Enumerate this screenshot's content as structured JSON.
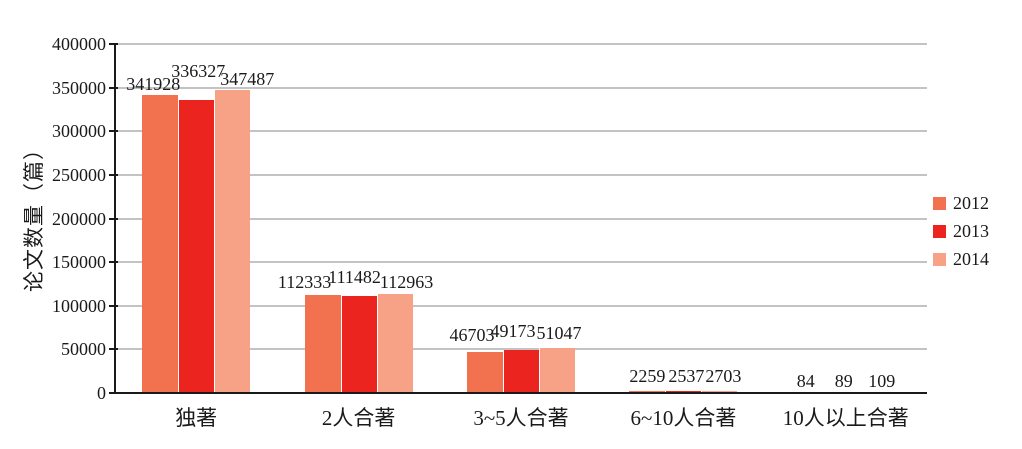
{
  "chart_data": {
    "type": "bar",
    "title": "",
    "xlabel": "",
    "ylabel": "论文数量（篇）",
    "categories": [
      "独著",
      "2人合著",
      "3~5人合著",
      "6~10人合著",
      "10人以上合著"
    ],
    "series": [
      {
        "name": "2012",
        "color": "#F2714E",
        "values": [
          341928,
          112333,
          46703,
          2259,
          84
        ]
      },
      {
        "name": "2013",
        "color": "#EB2420",
        "values": [
          336327,
          111482,
          49173,
          2537,
          89
        ]
      },
      {
        "name": "2014",
        "color": "#F7A287",
        "values": [
          347487,
          112963,
          51047,
          2703,
          109
        ]
      }
    ],
    "ylim": [
      0,
      400000
    ],
    "y_ticks": [
      0,
      50000,
      100000,
      150000,
      200000,
      250000,
      300000,
      350000,
      400000
    ],
    "grid": true,
    "legend_position": "right",
    "value_labels_shown": true,
    "value_label_dx": [
      [
        -7,
        2,
        15
      ],
      [
        -18,
        -4,
        12
      ],
      [
        -13,
        -8,
        2
      ],
      [
        0,
        3,
        4
      ],
      [
        -4,
        -2,
        0
      ]
    ],
    "value_label_dy": [
      [
        0,
        18,
        0
      ],
      [
        2,
        8,
        1
      ],
      [
        6,
        8,
        4
      ],
      [
        4,
        4,
        4
      ],
      [
        1,
        1,
        1
      ]
    ],
    "colors": {
      "axis": "#1a1a1a",
      "gridline": "#c3c3c3",
      "text": "#1a1a1a",
      "background": "#ffffff"
    }
  }
}
